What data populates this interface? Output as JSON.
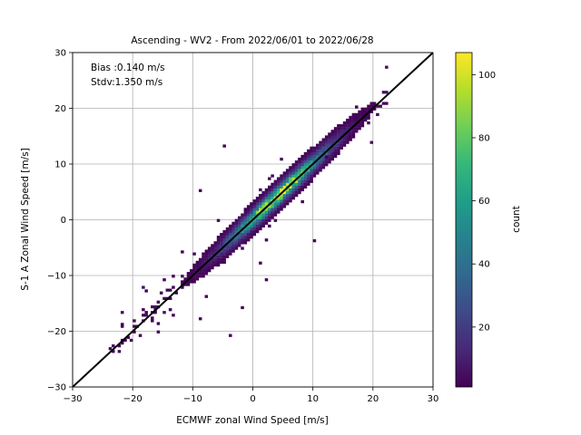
{
  "chart_data": {
    "type": "heatmap",
    "title": "Ascending - WV2 - From 2022/06/01 to 2022/06/28",
    "xlabel": "ECMWF zonal Wind Speed [m/s]",
    "ylabel": "S-1 A Zonal Wind Speed [m/s]",
    "xlim": [
      -30,
      30
    ],
    "ylim": [
      -30,
      30
    ],
    "xticks": [
      -30,
      -20,
      -10,
      0,
      10,
      20,
      30
    ],
    "yticks": [
      -30,
      -20,
      -10,
      0,
      10,
      20,
      30
    ],
    "xtick_labels": [
      "−30",
      "−20",
      "−10",
      "0",
      "10",
      "20",
      "30"
    ],
    "ytick_labels": [
      "−30",
      "−20",
      "−10",
      "0",
      "10",
      "20",
      "30"
    ],
    "grid": true,
    "annotations": [
      "Bias :0.140 m/s",
      "Stdv:1.350 m/s"
    ],
    "reference_line": {
      "from": [
        -30,
        -30
      ],
      "to": [
        30,
        30
      ],
      "color": "#000000"
    },
    "colorbar": {
      "label": "count",
      "colormap": "viridis",
      "min": 1,
      "max": 107,
      "ticks": [
        20,
        40,
        60,
        80,
        100
      ]
    },
    "bin_width": 0.5,
    "density": {
      "relation": "y approximately equals x",
      "peak_center": [
        4,
        4
      ],
      "peak_count": 107,
      "bias": 0.14,
      "stdv": 1.35
    }
  },
  "colors": {
    "viridis": [
      "#440154",
      "#482878",
      "#3e4989",
      "#31688e",
      "#26828e",
      "#1f9e89",
      "#35b779",
      "#6ece58",
      "#b5de2b",
      "#fde725"
    ],
    "grid": "#b0b0b0",
    "axes": "#000000"
  }
}
